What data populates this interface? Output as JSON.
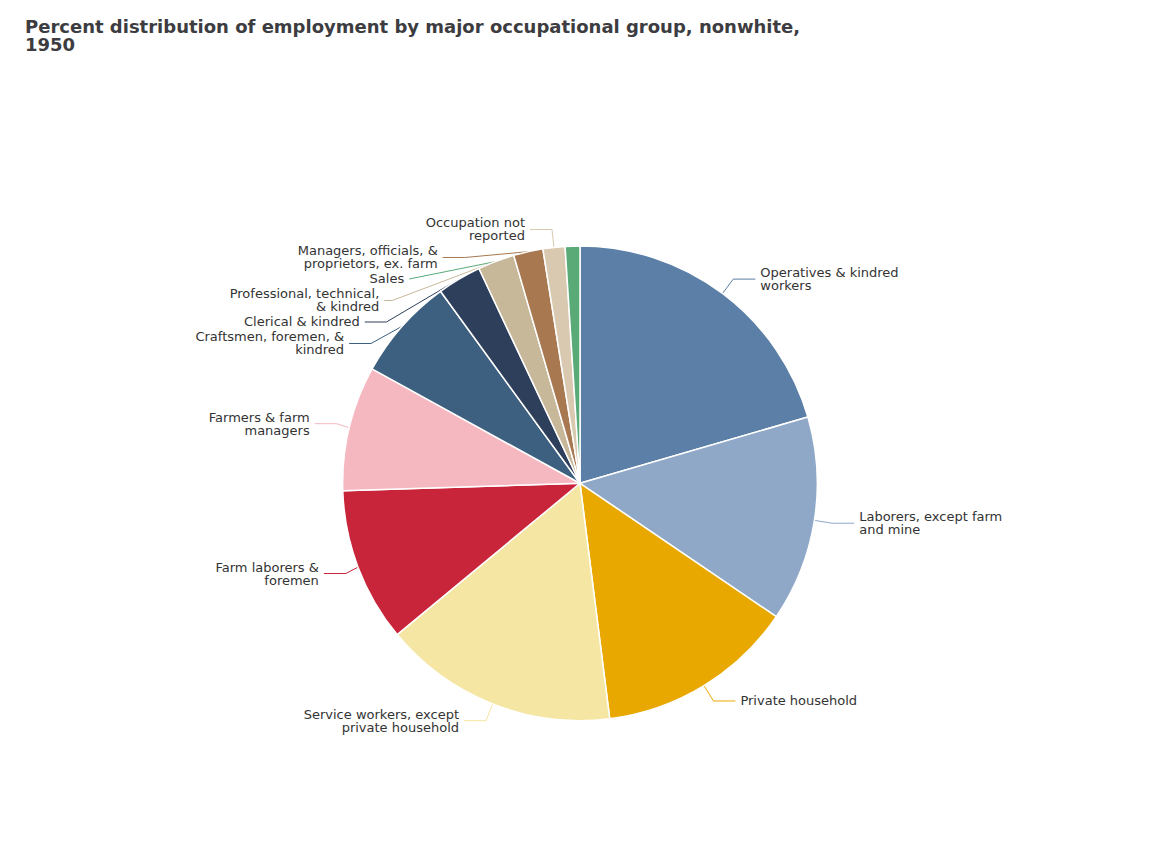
{
  "chart_data": {
    "type": "pie",
    "title": "Percent distribution of employment by major occupational group, nonwhite,\n1950",
    "categories": [
      "Operatives & kindred\nworkers",
      "Laborers, except farm\nand mine",
      "Private household",
      "Service workers, except\nprivate household",
      "Farm laborers &\nforemen",
      "Farmers & farm\nmanagers",
      "Craftsmen, foremen, &\nkindred",
      "Clerical & kindred",
      "Professional, technical,\n& kindred",
      "Managers, officials, &\nproprietors, ex. farm",
      "Occupation not\nreported",
      "Sales"
    ],
    "values": [
      20.5,
      14.0,
      13.5,
      16.0,
      10.5,
      8.5,
      7.0,
      3.0,
      2.5,
      2.0,
      1.5,
      1.0
    ],
    "colors": [
      "#5b7fa6",
      "#8fa8c8",
      "#e8a800",
      "#f5e6a3",
      "#c8253a",
      "#f5b8c0",
      "#3d6080",
      "#2e3f5c",
      "#c8b89a",
      "#a87850",
      "#d9c9b0",
      "#5aaa78"
    ]
  }
}
